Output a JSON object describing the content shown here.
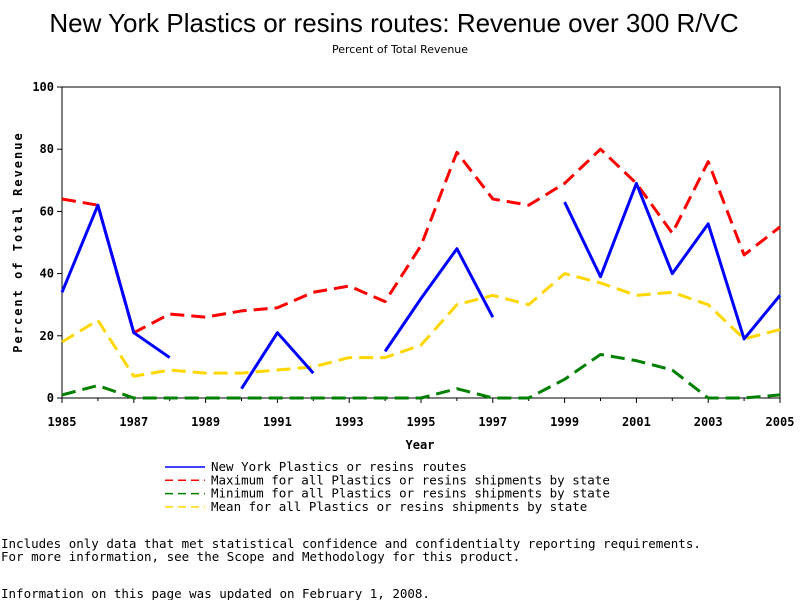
{
  "chart_data": {
    "type": "line",
    "title": "New York Plastics or resins routes: Revenue over 300 R/VC",
    "subtitle": "Percent of Total Revenue",
    "xlabel": "Year",
    "ylabel": "Percent of Total Revenue",
    "xlim": [
      1985,
      2005
    ],
    "ylim": [
      0,
      100
    ],
    "x_ticks": [
      "1985",
      "1987",
      "1989",
      "1991",
      "1993",
      "1995",
      "1997",
      "1999",
      "2001",
      "2003",
      "2005"
    ],
    "y_ticks": [
      "0",
      "20",
      "40",
      "60",
      "80",
      "100"
    ],
    "x": [
      1985,
      1986,
      1987,
      1988,
      1989,
      1990,
      1991,
      1992,
      1993,
      1994,
      1995,
      1996,
      1997,
      1998,
      1999,
      2000,
      2001,
      2002,
      2003,
      2004,
      2005
    ],
    "series": [
      {
        "name": "New York Plastics or resins routes",
        "color": "#0000ff",
        "style": "solid",
        "values": [
          34,
          62,
          21,
          13,
          null,
          3,
          21,
          8,
          null,
          15,
          32,
          48,
          26,
          null,
          63,
          39,
          69,
          40,
          56,
          19,
          33
        ]
      },
      {
        "name": "Maximum for all Plastics or resins shipments by state",
        "color": "#ff0000",
        "style": "dashed",
        "values": [
          64,
          62,
          21,
          27,
          26,
          28,
          29,
          34,
          36,
          31,
          49,
          79,
          64,
          62,
          69,
          80,
          69,
          53,
          76,
          46,
          55
        ]
      },
      {
        "name": "Minimum for all Plastics or resins shipments by state",
        "color": "#008000",
        "style": "dashed",
        "values": [
          1,
          4,
          0,
          0,
          0,
          0,
          0,
          0,
          0,
          0,
          0,
          3,
          0,
          0,
          6,
          14,
          12,
          9,
          0,
          0,
          1
        ]
      },
      {
        "name": "Mean for all Plastics or resins shipments by state",
        "color": "#ffd700",
        "style": "dashed",
        "values": [
          18,
          25,
          7,
          9,
          8,
          8,
          9,
          10,
          13,
          13,
          17,
          30,
          33,
          30,
          40,
          37,
          33,
          34,
          30,
          19,
          22
        ]
      }
    ],
    "legend_position": "bottom"
  },
  "footnotes": [
    "Includes only data that met statistical confidence and confidentialty reporting requirements.",
    "For more information, see the Scope and Methodology for this product.",
    "Information on this page was updated on February 1, 2008."
  ]
}
